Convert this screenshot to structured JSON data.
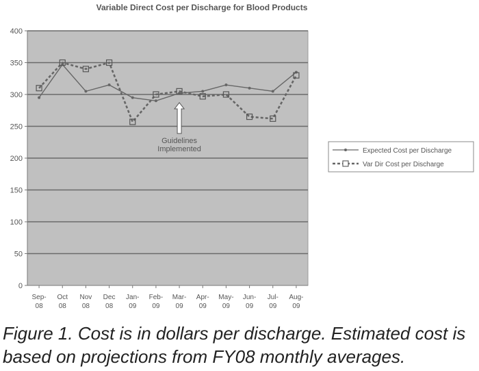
{
  "chart_data": {
    "type": "line",
    "title": "Variable Direct Cost per Discharge for Blood Products",
    "categories": [
      [
        "Sep-",
        "08"
      ],
      [
        "Oct",
        "08"
      ],
      [
        "Nov",
        "08"
      ],
      [
        "Dec",
        "08"
      ],
      [
        "Jan-",
        "09"
      ],
      [
        "Feb-",
        "09"
      ],
      [
        "Mar-",
        "09"
      ],
      [
        "Apr-",
        "09"
      ],
      [
        "May-",
        "09"
      ],
      [
        "Jun-",
        "09"
      ],
      [
        "Jul-",
        "09"
      ],
      [
        "Aug-",
        "09"
      ]
    ],
    "ylim": [
      0,
      400
    ],
    "yticks": [
      0,
      50,
      100,
      150,
      200,
      250,
      300,
      350,
      400
    ],
    "grid": true,
    "legend_position": "right",
    "series": [
      {
        "name": "Expected Cost per Discharge",
        "style": "solid",
        "marker": "dot",
        "color": "#666666",
        "values": [
          295,
          347,
          305,
          315,
          295,
          290,
          302,
          305,
          315,
          310,
          305,
          335
        ]
      },
      {
        "name": "Var Dir Cost per Discharge",
        "style": "dashed",
        "marker": "square",
        "color": "#666666",
        "values": [
          310,
          350,
          340,
          350,
          257,
          300,
          305,
          297,
          300,
          265,
          262,
          330
        ]
      }
    ],
    "annotations": [
      {
        "text": [
          "Guidelines",
          "Implemented"
        ],
        "at_category_index": 6,
        "value": 300
      }
    ],
    "plot_background": "#c0c0c0"
  },
  "caption": "Figure 1. Cost is in dollars per discharge. Estimated cost is based on projections from FY08 monthly averages."
}
